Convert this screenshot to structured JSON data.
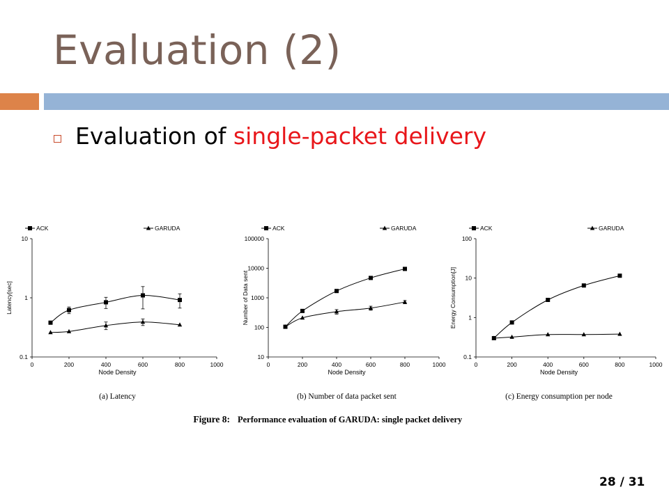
{
  "slide": {
    "title": "Evaluation (2)",
    "bullet_text": "Evaluation of ",
    "bullet_highlight": "single-packet delivery",
    "page_current": "28",
    "page_sep": "/ 31"
  },
  "colors": {
    "title": "#7a6258",
    "accent_orange": "#dd8349",
    "accent_blue": "#95b3d6",
    "highlight": "#e8161a"
  },
  "figure": {
    "caption_label": "Figure 8:",
    "caption_text": "Performance evaluation of GARUDA: single packet delivery"
  },
  "chart_data": [
    {
      "type": "line",
      "caption": "(a) Latency",
      "xlabel": "Node Density",
      "ylabel": "Latency[sec]",
      "xlim": [
        0,
        1000
      ],
      "ylim": [
        0.1,
        10
      ],
      "yscale": "log",
      "xticks": [
        0,
        200,
        400,
        600,
        800,
        1000
      ],
      "yticks": [
        0.1,
        1,
        10
      ],
      "legend": "top",
      "series": [
        {
          "name": "ACK",
          "marker": "square",
          "x": [
            100,
            200,
            400,
            600,
            800
          ],
          "y": [
            0.38,
            0.62,
            0.84,
            1.1,
            0.92
          ],
          "err": [
            0,
            0.08,
            0.18,
            0.45,
            0.25
          ]
        },
        {
          "name": "GARUDA",
          "marker": "triangle",
          "x": [
            100,
            200,
            400,
            600,
            800
          ],
          "y": [
            0.26,
            0.27,
            0.34,
            0.39,
            0.35
          ],
          "err": [
            0,
            0,
            0.05,
            0.05,
            0
          ]
        }
      ]
    },
    {
      "type": "line",
      "caption": "(b) Number of data packet sent",
      "xlabel": "Node Density",
      "ylabel": "Number of Data sent",
      "xlim": [
        0,
        1000
      ],
      "ylim": [
        10,
        100000
      ],
      "yscale": "log",
      "xticks": [
        0,
        200,
        400,
        600,
        800,
        1000
      ],
      "yticks": [
        10,
        100,
        1000,
        10000,
        100000
      ],
      "legend": "top",
      "series": [
        {
          "name": "ACK",
          "marker": "square",
          "x": [
            100,
            200,
            400,
            600,
            800
          ],
          "y": [
            105,
            360,
            1700,
            4700,
            9500
          ],
          "err": [
            0,
            0,
            0,
            0,
            0
          ]
        },
        {
          "name": "GARUDA",
          "marker": "triangle",
          "x": [
            100,
            200,
            400,
            600,
            800
          ],
          "y": [
            105,
            210,
            340,
            450,
            720
          ],
          "err": [
            0,
            0,
            60,
            70,
            90
          ]
        }
      ]
    },
    {
      "type": "line",
      "caption": "(c) Energy consumption per node",
      "xlabel": "Node Density",
      "ylabel": "Energy Consumption[J]",
      "xlim": [
        0,
        1000
      ],
      "ylim": [
        0.1,
        100
      ],
      "yscale": "log",
      "xticks": [
        0,
        200,
        400,
        600,
        800,
        1000
      ],
      "yticks": [
        0.1,
        1,
        10,
        100
      ],
      "legend": "top",
      "series": [
        {
          "name": "ACK",
          "marker": "square",
          "x": [
            100,
            200,
            400,
            600,
            800
          ],
          "y": [
            0.3,
            0.75,
            2.8,
            6.5,
            11.5
          ],
          "err": [
            0,
            0,
            0,
            0,
            0
          ]
        },
        {
          "name": "GARUDA",
          "marker": "triangle",
          "x": [
            100,
            200,
            400,
            600,
            800
          ],
          "y": [
            0.3,
            0.32,
            0.37,
            0.37,
            0.38
          ],
          "err": [
            0,
            0,
            0,
            0,
            0
          ]
        }
      ]
    }
  ]
}
